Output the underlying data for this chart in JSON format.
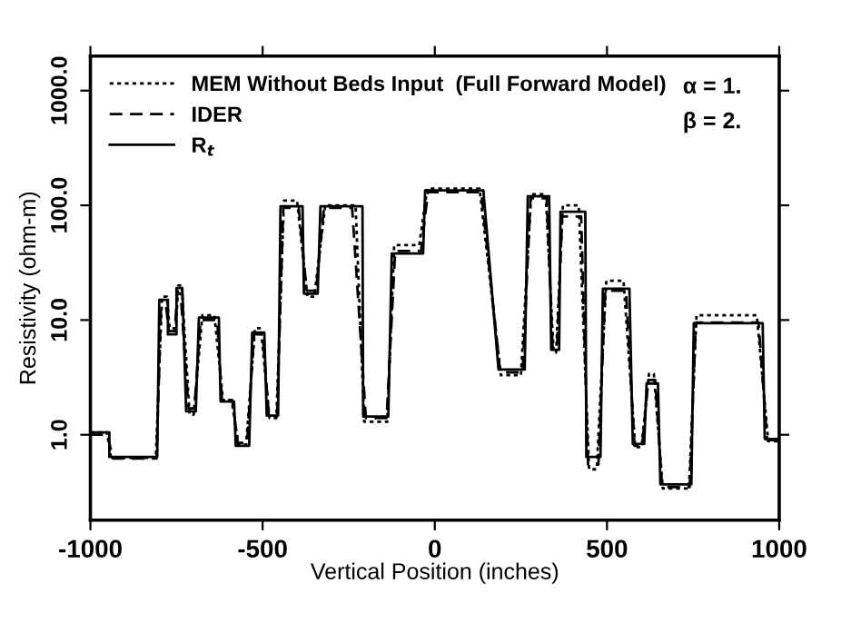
{
  "chart_data": {
    "type": "line",
    "xlabel": "Vertical Position (inches)",
    "ylabel": "Resistivity (ohm-m)",
    "log": "y",
    "xlim": [
      -1000,
      1000
    ],
    "ylim": [
      0.18,
      2000
    ],
    "xticks": [
      -1000,
      -500,
      0,
      500,
      1000
    ],
    "yticks": [
      {
        "value": 1,
        "label": "1.0"
      },
      {
        "value": 10,
        "label": "10.0"
      },
      {
        "value": 100,
        "label": "100.0"
      },
      {
        "value": 1000,
        "label": "1000.0"
      }
    ],
    "grid": false,
    "legend": "top left",
    "marker": "none",
    "annotations": [
      "α = 1.",
      "β = 2."
    ],
    "series": [
      {
        "name": "MEM Without Beds Input  (Full Forward Model)",
        "color": "#000000",
        "line_style": "dotted",
        "x": [
          -1000,
          -952,
          -940,
          -810,
          -792,
          -778,
          -770,
          -752,
          -745,
          -735,
          -712,
          -700,
          -675,
          -640,
          -615,
          -590,
          -570,
          -548,
          -522,
          -505,
          -480,
          -460,
          -438,
          -400,
          -370,
          -350,
          -318,
          -230,
          -205,
          -138,
          -118,
          -45,
          -22,
          130,
          192,
          250,
          280,
          322,
          345,
          352,
          372,
          418,
          448,
          470,
          498,
          548,
          582,
          600,
          622,
          636,
          662,
          738,
          760,
          935,
          968,
          1000
        ],
        "values": [
          1.05,
          1.05,
          0.63,
          0.63,
          16,
          16,
          8.5,
          8.5,
          20,
          20,
          1.5,
          1.5,
          11,
          11,
          2.0,
          2.0,
          0.82,
          0.82,
          8.5,
          8.5,
          1.4,
          1.4,
          110,
          110,
          16,
          16,
          100,
          100,
          1.3,
          1.3,
          45,
          45,
          140,
          140,
          3.3,
          3.3,
          125,
          125,
          5.2,
          5.2,
          100,
          100,
          0.5,
          0.5,
          22,
          22,
          0.78,
          0.78,
          3.4,
          3.4,
          0.34,
          0.34,
          11,
          11,
          0.88,
          0.88
        ]
      },
      {
        "name": "IDER",
        "color": "#000000",
        "line_style": "dashed",
        "x": [
          -1000,
          -950,
          -935,
          -808,
          -795,
          -780,
          -772,
          -755,
          -748,
          -738,
          -715,
          -698,
          -680,
          -632,
          -618,
          -588,
          -572,
          -545,
          -525,
          -500,
          -482,
          -458,
          -440,
          -395,
          -372,
          -345,
          -322,
          -240,
          -200,
          -140,
          -115,
          -40,
          -20,
          135,
          190,
          255,
          278,
          325,
          342,
          355,
          370,
          425,
          445,
          475,
          495,
          555,
          580,
          602,
          620,
          640,
          660,
          740,
          758,
          940,
          965,
          1000
        ],
        "values": [
          1.0,
          1.0,
          0.62,
          0.62,
          13,
          13,
          8,
          8,
          17,
          17,
          1.7,
          1.7,
          10,
          10,
          2.0,
          2.0,
          0.85,
          0.85,
          7.5,
          7.5,
          1.5,
          1.5,
          95,
          95,
          18,
          18,
          95,
          95,
          1.4,
          1.4,
          40,
          40,
          130,
          130,
          3.5,
          3.5,
          115,
          115,
          5.8,
          5.8,
          80,
          80,
          0.55,
          0.55,
          18,
          18,
          0.8,
          0.8,
          3.0,
          3.0,
          0.35,
          0.35,
          9.5,
          9.5,
          0.9,
          0.9
        ]
      },
      {
        "name": "R$_{t}$",
        "color": "#000000",
        "line_style": "solid",
        "x": [
          -1000,
          -945,
          -945,
          -806,
          -800,
          -775,
          -775,
          -750,
          -750,
          -733,
          -722,
          -694,
          -685,
          -627,
          -622,
          -583,
          -578,
          -539,
          -530,
          -495,
          -488,
          -455,
          -448,
          -384,
          -380,
          -340,
          -332,
          -210,
          -208,
          -135,
          -125,
          -34,
          -28,
          141,
          185,
          261,
          270,
          332,
          338,
          361,
          365,
          437,
          440,
          481,
          488,
          565,
          575,
          608,
          615,
          648,
          655,
          745,
          752,
          952,
          958,
          1000
        ],
        "values": [
          1.05,
          1.05,
          0.64,
          0.64,
          15,
          15,
          7.5,
          7.5,
          19,
          19,
          1.6,
          1.6,
          10.5,
          10.5,
          1.95,
          1.95,
          0.8,
          0.8,
          7.8,
          7.8,
          1.47,
          1.47,
          98,
          98,
          17,
          17,
          98,
          98,
          1.44,
          1.44,
          38,
          38,
          135,
          135,
          3.7,
          3.7,
          120,
          120,
          5.5,
          5.5,
          88,
          88,
          0.64,
          0.64,
          18.8,
          18.8,
          0.83,
          0.83,
          2.8,
          2.8,
          0.37,
          0.37,
          9.4,
          9.4,
          0.92,
          0.92
        ]
      }
    ]
  }
}
